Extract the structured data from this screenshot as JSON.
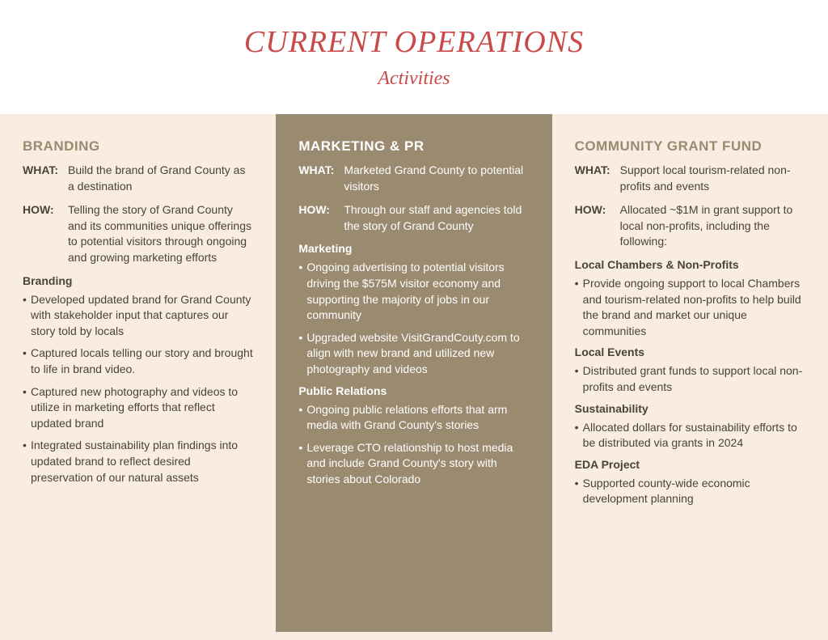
{
  "colors": {
    "page_bg": "#f9ece1",
    "header_bg": "#ffffff",
    "title_color": "#c94a4a",
    "mid_bg": "#9a8a6f",
    "mid_text": "#ffffff",
    "side_text": "#4a4338",
    "side_heading": "#9a8a6f"
  },
  "header": {
    "title": "CURRENT OPERATIONS",
    "subtitle": "Activities"
  },
  "branding": {
    "heading": "BRANDING",
    "what_label": "WHAT:",
    "what": "Build the brand of Grand County as a destination",
    "how_label": "HOW:",
    "how": "Telling the story of Grand County and its communities unique offerings to potential visitors through ongoing and growing marketing efforts",
    "sub1": "Branding",
    "items1": [
      "Developed updated brand for Grand County with stakeholder input that captures our story told by locals",
      "Captured locals telling our story and brought to life in brand video.",
      "Captured new photography and videos to utilize in marketing efforts that reflect updated brand",
      "Integrated sustainability plan findings into updated brand to reflect desired preservation of our natural assets"
    ]
  },
  "marketing": {
    "heading": "MARKETING & PR",
    "what_label": "WHAT:",
    "what": "Marketed Grand County to potential visitors",
    "how_label": "HOW:",
    "how": "Through our staff and agencies told the story of Grand County",
    "sub1": "Marketing",
    "items1": [
      "Ongoing advertising to potential visitors driving the $575M visitor economy and supporting the majority of jobs in our community",
      "Upgraded website VisitGrandCouty.com to align with new brand and utilized new photography and videos"
    ],
    "sub2": "Public Relations",
    "items2": [
      "Ongoing public relations efforts that arm media with Grand County's stories",
      "Leverage CTO relationship to host media and include Grand County's story with stories about Colorado"
    ]
  },
  "community": {
    "heading": "COMMUNITY GRANT FUND",
    "what_label": "WHAT:",
    "what": "Support local tourism-related non-profits and events",
    "how_label": "HOW:",
    "how": "Allocated ~$1M in grant support to local non-profits, including the following:",
    "sub1": "Local Chambers & Non-Profits",
    "items1": [
      "Provide ongoing support to local Chambers and tourism-related non-profits to help build the brand and market our unique communities"
    ],
    "sub2": "Local Events",
    "items2": [
      "Distributed grant funds to support local non-profits and events"
    ],
    "sub3": "Sustainability",
    "items3": [
      "Allocated dollars for sustainability efforts to be distributed via grants in 2024"
    ],
    "sub4": "EDA Project",
    "items4": [
      "Supported county-wide economic development planning"
    ]
  }
}
